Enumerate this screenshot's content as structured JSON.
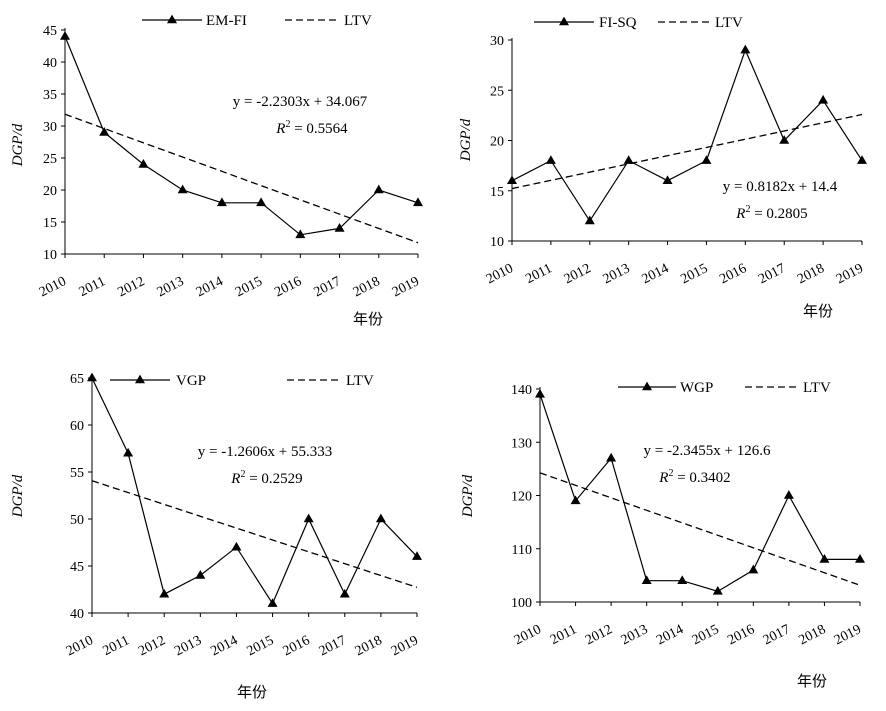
{
  "chart_data": [
    {
      "type": "line",
      "categories": [
        "2010",
        "2011",
        "2012",
        "2013",
        "2014",
        "2015",
        "2016",
        "2017",
        "2018",
        "2019"
      ],
      "series": [
        {
          "name": "EM-FI",
          "values": [
            44,
            29,
            24,
            20,
            18,
            18,
            13,
            14,
            20,
            18
          ],
          "style": "solid-triangle"
        },
        {
          "name": "LTV",
          "trend": {
            "slope": -2.2303,
            "intercept": 34.067
          },
          "style": "dashed"
        }
      ],
      "ylabel": "DGP/d",
      "xlabel": "年份",
      "ylim": [
        10,
        45
      ],
      "yticks": [
        10,
        15,
        20,
        25,
        30,
        35,
        40,
        45
      ],
      "equation": {
        "y": "y = -2.2303x + 34.067",
        "r2_prefix": "R",
        "r2_sup": "2",
        "r2_value": " = 0.5564"
      },
      "legend_position": "top",
      "grid": false
    },
    {
      "type": "line",
      "categories": [
        "2010",
        "2011",
        "2012",
        "2013",
        "2014",
        "2015",
        "2016",
        "2017",
        "2018",
        "2019"
      ],
      "series": [
        {
          "name": "FI-SQ",
          "values": [
            16,
            18,
            12,
            18,
            16,
            18,
            29,
            20,
            24,
            18
          ],
          "style": "solid-triangle"
        },
        {
          "name": "LTV",
          "trend": {
            "slope": 0.8182,
            "intercept": 14.4
          },
          "style": "dashed"
        }
      ],
      "ylabel": "DGP/d",
      "xlabel": "年份",
      "ylim": [
        10,
        30
      ],
      "yticks": [
        10,
        15,
        20,
        25,
        30
      ],
      "equation": {
        "y": "y = 0.8182x + 14.4",
        "r2_prefix": "R",
        "r2_sup": "2",
        "r2_value": " = 0.2805"
      },
      "legend_position": "top",
      "grid": false
    },
    {
      "type": "line",
      "categories": [
        "2010",
        "2011",
        "2012",
        "2013",
        "2014",
        "2015",
        "2016",
        "2017",
        "2018",
        "2019"
      ],
      "series": [
        {
          "name": "VGP",
          "values": [
            65,
            57,
            42,
            44,
            47,
            41,
            50,
            42,
            50,
            46
          ],
          "style": "solid-triangle"
        },
        {
          "name": "LTV",
          "trend": {
            "slope": -1.2606,
            "intercept": 55.333
          },
          "style": "dashed"
        }
      ],
      "ylabel": "DGP/d",
      "xlabel": "年份",
      "ylim": [
        40,
        65
      ],
      "yticks": [
        40,
        45,
        50,
        55,
        60,
        65
      ],
      "equation": {
        "y": "y = -1.2606x + 55.333",
        "r2_prefix": "R",
        "r2_sup": "2",
        "r2_value": " = 0.2529"
      },
      "legend_position": "top",
      "grid": false
    },
    {
      "type": "line",
      "categories": [
        "2010",
        "2011",
        "2012",
        "2013",
        "2014",
        "2015",
        "2016",
        "2017",
        "2018",
        "2019"
      ],
      "series": [
        {
          "name": "WGP",
          "values": [
            139,
            119,
            127,
            104,
            104,
            102,
            106,
            120,
            108,
            108
          ],
          "style": "solid-triangle"
        },
        {
          "name": "LTV",
          "trend": {
            "slope": -2.3455,
            "intercept": 126.6
          },
          "style": "dashed"
        }
      ],
      "ylabel": "DGP/d",
      "xlabel": "年份",
      "ylim": [
        100,
        140
      ],
      "yticks": [
        100,
        110,
        120,
        130,
        140
      ],
      "equation": {
        "y": "y = -2.3455x + 126.6",
        "r2_prefix": "R",
        "r2_sup": "2",
        "r2_value": " = 0.3402"
      },
      "legend_position": "top",
      "grid": false
    }
  ]
}
